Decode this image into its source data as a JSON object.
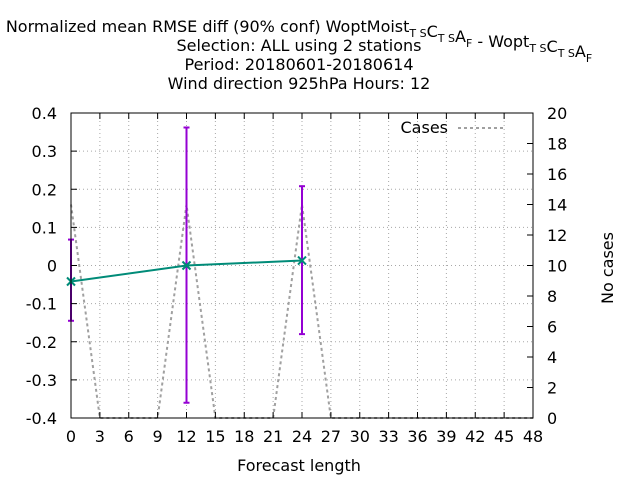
{
  "chart_data": {
    "type": "line",
    "title_lines": [
      "Normalized mean RMSE diff (90% conf) WoptMoist_TSC_TSA_F - Wopt_TSC_TSA_F",
      "Selection: ALL using     2 stations",
      "Period: 20180601-20180614",
      "Wind direction 925hPa   Hours:  12"
    ],
    "title_rich": [
      {
        "text": "Normalized mean RMSE diff (90% conf) WoptMoist"
      },
      {
        "text": "T S",
        "sub": true
      },
      {
        "text": "C"
      },
      {
        "text": "T S",
        "sub": true
      },
      {
        "text": "A"
      },
      {
        "text": "F",
        "sub": true
      },
      {
        "text": " - Wopt"
      },
      {
        "text": "T S",
        "sub": true
      },
      {
        "text": "C"
      },
      {
        "text": "T S",
        "sub": true
      },
      {
        "text": "A"
      },
      {
        "text": "F",
        "sub": true
      }
    ],
    "xlabel": "Forecast length",
    "ylabel_right": "No cases",
    "xlim": [
      0,
      48
    ],
    "ylim": [
      -0.4,
      0.4
    ],
    "y2lim": [
      0,
      20
    ],
    "xticks": [
      0,
      3,
      6,
      9,
      12,
      15,
      18,
      21,
      24,
      27,
      30,
      33,
      36,
      39,
      42,
      45,
      48
    ],
    "yticks": [
      -0.4,
      -0.3,
      -0.2,
      -0.1,
      0,
      0.1,
      0.2,
      0.3,
      0.4
    ],
    "ytick_labels": [
      "-0.4",
      "-0.3",
      "-0.2",
      "-0.1",
      "0",
      "0.1",
      "0.2",
      "0.3",
      "0.4"
    ],
    "y2ticks": [
      0,
      2,
      4,
      6,
      8,
      10,
      12,
      14,
      16,
      18,
      20
    ],
    "grid": true,
    "legend_position": "top-right",
    "main_series": {
      "color": "#008b78",
      "errorbar_color": "#9400d3",
      "points": [
        {
          "x": 0,
          "y": -0.042,
          "low": -0.145,
          "high": 0.068
        },
        {
          "x": 12,
          "y": 0.0,
          "low": -0.36,
          "high": 0.362
        },
        {
          "x": 24,
          "y": 0.013,
          "low": -0.18,
          "high": 0.208
        }
      ]
    },
    "cases_series": {
      "name": "Cases",
      "color": "#a0a0a0",
      "x": [
        0,
        3,
        9,
        12,
        15,
        21,
        24,
        27,
        48
      ],
      "y": [
        14,
        0,
        0,
        14,
        0,
        0,
        14,
        0,
        0
      ]
    }
  }
}
